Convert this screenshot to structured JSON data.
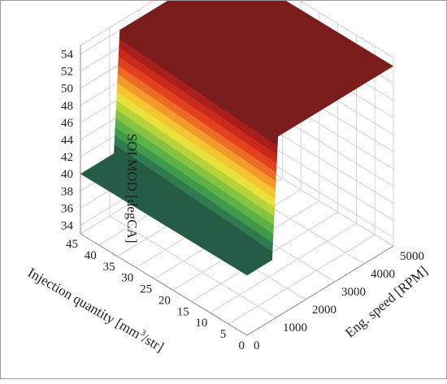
{
  "chart_data": {
    "type": "surface3d",
    "zlabel": "SOI MOD [degCA]",
    "xlabel": "Eng. speed [RPM]",
    "ylabel_main": "Injection quantity [mm",
    "ylabel_sup": "3",
    "ylabel_tail": "/str]",
    "x_ticks": [
      "0",
      "1000",
      "2000",
      "3000",
      "4000",
      "5000"
    ],
    "y_ticks": [
      "0",
      "5",
      "10",
      "15",
      "20",
      "25",
      "30",
      "35",
      "40",
      "45"
    ],
    "z_ticks": [
      "34",
      "36",
      "38",
      "40",
      "42",
      "44",
      "46",
      "48",
      "50",
      "52",
      "54"
    ],
    "xlim": [
      0,
      5000
    ],
    "ylim": [
      0,
      45
    ],
    "zlim": [
      33,
      55
    ],
    "grid": true,
    "surface": {
      "low_plateau": 40,
      "high_plateau": 54,
      "step_speed_at_q0": 850,
      "step_speed_at_q45": 1150,
      "description_of_grid": "low value below the step speed, high value above it, independent of injection quantity apart from slight skew"
    },
    "colormap": [
      "#245c45",
      "#2f7a4e",
      "#3f9a4a",
      "#5cb247",
      "#86c341",
      "#b8d33a",
      "#e6e13b",
      "#f4c431",
      "#f29a2b",
      "#ec6b25",
      "#e2401f",
      "#c92a1c",
      "#a81f1c",
      "#7c1d1d"
    ]
  }
}
